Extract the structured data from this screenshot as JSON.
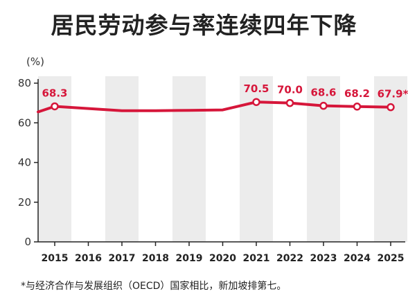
{
  "title": "居民劳动参与率连续四年下降",
  "unit_label": "(%)",
  "footnote": "*与经济合作与发展组织（OECD）国家相比，新加坡排第七。",
  "colors": {
    "line": "#d6163a",
    "band": "#ececec",
    "axis": "#222222",
    "marker_fill": "#ffffff"
  },
  "chart_data": {
    "type": "line",
    "title": "居民劳动参与率连续四年下降",
    "xlabel": "",
    "ylabel": "(%)",
    "ylim": [
      0,
      80
    ],
    "yticks": [
      0,
      20,
      40,
      60,
      80
    ],
    "categories": [
      "2015",
      "2016",
      "2017",
      "2018",
      "2019",
      "2020",
      "2021",
      "2022",
      "2023",
      "2024",
      "2025"
    ],
    "grid": false,
    "series": [
      {
        "values": [
          68.3,
          67.2,
          66.1,
          66.1,
          66.3,
          66.5,
          70.5,
          70.0,
          68.6,
          68.2,
          67.9
        ],
        "markers": [
          true,
          false,
          false,
          false,
          false,
          false,
          true,
          true,
          true,
          true,
          true
        ],
        "data_labels": [
          "68.3",
          "",
          "",
          "",
          "",
          "",
          "70.5",
          "70.0",
          "68.6",
          "68.2",
          "67.9*"
        ]
      }
    ]
  }
}
